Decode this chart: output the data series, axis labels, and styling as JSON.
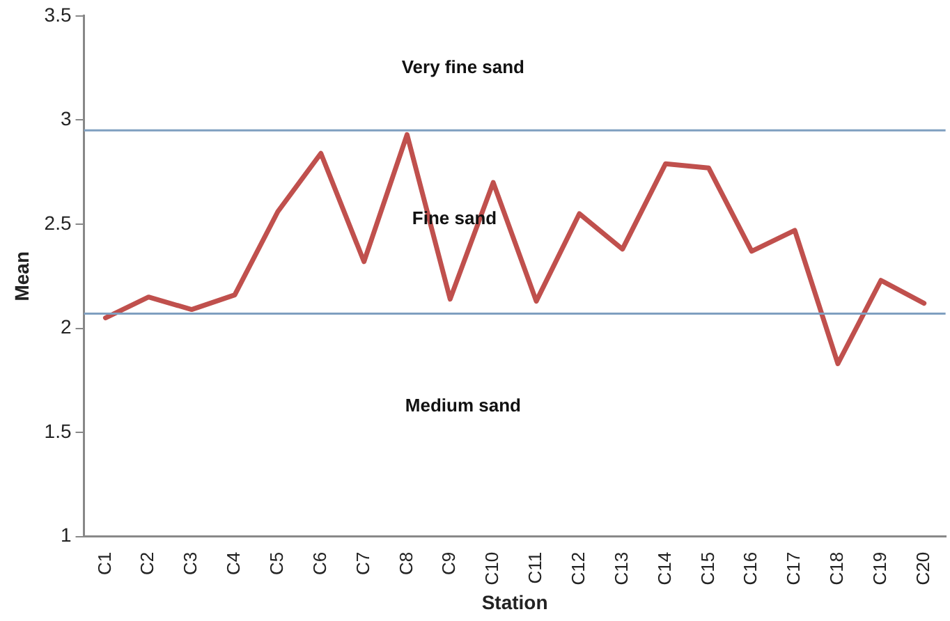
{
  "chart_data": {
    "type": "line",
    "xlabel": "Station",
    "ylabel": "Mean",
    "categories": [
      "C1",
      "C2",
      "C3",
      "C4",
      "C5",
      "C6",
      "C7",
      "C8",
      "C9",
      "C10",
      "C11",
      "C12",
      "C13",
      "C14",
      "C15",
      "C16",
      "C17",
      "C18",
      "C19",
      "C20"
    ],
    "series": [
      {
        "color": "#c0504d",
        "values": [
          2.05,
          2.15,
          2.09,
          2.16,
          2.56,
          2.84,
          2.32,
          2.93,
          2.14,
          2.7,
          2.13,
          2.55,
          2.38,
          2.79,
          2.77,
          2.37,
          2.47,
          1.83,
          2.23,
          2.12
        ]
      }
    ],
    "ylim": [
      1,
      3.5
    ],
    "yticks": [
      1,
      1.5,
      2,
      2.5,
      3,
      3.5
    ],
    "grid": false,
    "legend": false,
    "marker": "none",
    "line_style": "solid",
    "ref_lines": [
      {
        "axis": "y",
        "value": 2.95,
        "color": "#7f9fc0"
      },
      {
        "axis": "y",
        "value": 2.07,
        "color": "#7f9fc0"
      }
    ],
    "annotations": [
      "Very fine sand",
      "Fine sand",
      "Medium sand"
    ]
  }
}
